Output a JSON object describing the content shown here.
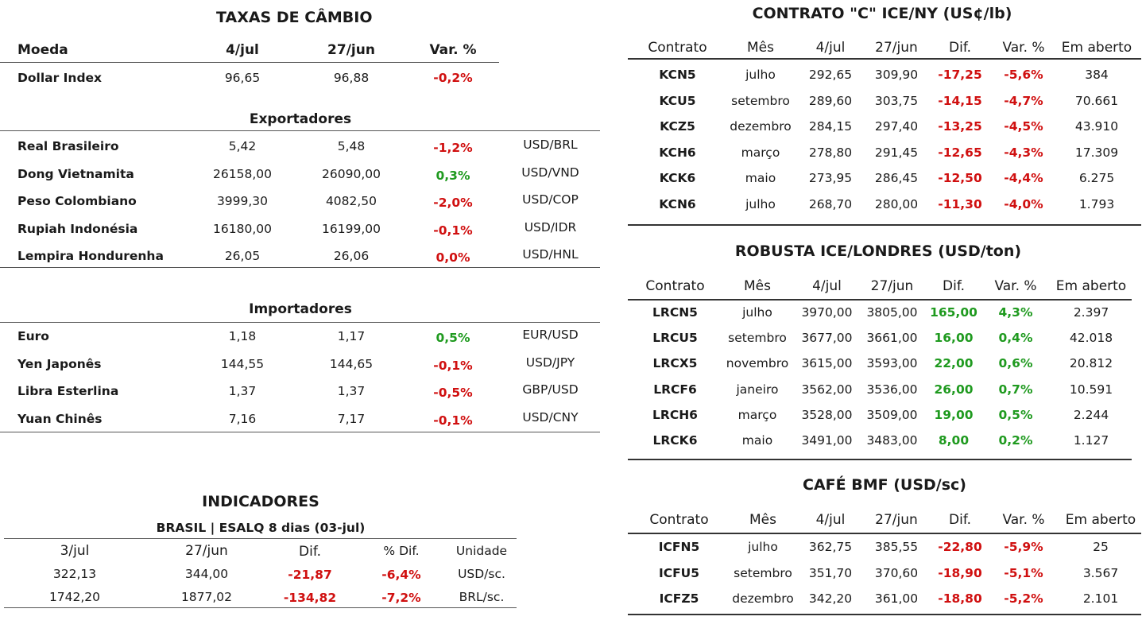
{
  "taxas": {
    "title": "TAXAS DE CÂMBIO",
    "headers": [
      "Moeda",
      "4/jul",
      "27/jun",
      "Var. %"
    ],
    "dollar_index": {
      "name": "Dollar Index",
      "v1": "96,65",
      "v2": "96,88",
      "var": "-0,2%"
    },
    "exportadores_title": "Exportadores",
    "exportadores": [
      {
        "name": "Real Brasileiro",
        "v1": "5,42",
        "v2": "5,48",
        "var": "-1,2%",
        "pair": "USD/BRL",
        "color": "red"
      },
      {
        "name": "Dong Vietnamita",
        "v1": "26158,00",
        "v2": "26090,00",
        "var": "0,3%",
        "pair": "USD/VND",
        "color": "green"
      },
      {
        "name": "Peso Colombiano",
        "v1": "3999,30",
        "v2": "4082,50",
        "var": "-2,0%",
        "pair": "USD/COP",
        "color": "red"
      },
      {
        "name": "Rupiah Indonésia",
        "v1": "16180,00",
        "v2": "16199,00",
        "var": "-0,1%",
        "pair": "USD/IDR",
        "color": "red"
      },
      {
        "name": "Lempira Hondurenha",
        "v1": "26,05",
        "v2": "26,06",
        "var": "0,0%",
        "pair": "USD/HNL",
        "color": "red"
      }
    ],
    "importadores_title": "Importadores",
    "importadores": [
      {
        "name": "Euro",
        "v1": "1,18",
        "v2": "1,17",
        "var": "0,5%",
        "pair": "EUR/USD",
        "color": "green"
      },
      {
        "name": "Yen Japonês",
        "v1": "144,55",
        "v2": "144,65",
        "var": "-0,1%",
        "pair": "USD/JPY",
        "color": "red"
      },
      {
        "name": "Libra Esterlina",
        "v1": "1,37",
        "v2": "1,37",
        "var": "-0,5%",
        "pair": "GBP/USD",
        "color": "red"
      },
      {
        "name": "Yuan Chinês",
        "v1": "7,16",
        "v2": "7,17",
        "var": "-0,1%",
        "pair": "USD/CNY",
        "color": "red"
      }
    ]
  },
  "indicadores": {
    "title": "INDICADORES",
    "subtitle": "BRASIL | ESALQ 8 dias (03-jul)",
    "headers": [
      "3/jul",
      "27/jun",
      "Dif.",
      "% Dif.",
      "Unidade"
    ],
    "rows": [
      {
        "v1": "322,13",
        "v2": "344,00",
        "dif": "-21,87",
        "pct": "-6,4%",
        "unit": "USD/sc."
      },
      {
        "v1": "1742,20",
        "v2": "1877,02",
        "dif": "-134,82",
        "pct": "-7,2%",
        "unit": "BRL/sc."
      }
    ]
  },
  "contrato_c": {
    "title": "CONTRATO \"C\" ICE/NY (US¢/lb)",
    "headers": [
      "Contrato",
      "Mês",
      "4/jul",
      "27/jun",
      "Dif.",
      "Var. %",
      "Em aberto"
    ],
    "rows": [
      {
        "code": "KCN5",
        "month": "julho",
        "v1": "292,65",
        "v2": "309,90",
        "dif": "-17,25",
        "var": "-5,6%",
        "open": "384"
      },
      {
        "code": "KCU5",
        "month": "setembro",
        "v1": "289,60",
        "v2": "303,75",
        "dif": "-14,15",
        "var": "-4,7%",
        "open": "70.661"
      },
      {
        "code": "KCZ5",
        "month": "dezembro",
        "v1": "284,15",
        "v2": "297,40",
        "dif": "-13,25",
        "var": "-4,5%",
        "open": "43.910"
      },
      {
        "code": "KCH6",
        "month": "março",
        "v1": "278,80",
        "v2": "291,45",
        "dif": "-12,65",
        "var": "-4,3%",
        "open": "17.309"
      },
      {
        "code": "KCK6",
        "month": "maio",
        "v1": "273,95",
        "v2": "286,45",
        "dif": "-12,50",
        "var": "-4,4%",
        "open": "6.275"
      },
      {
        "code": "KCN6",
        "month": "julho",
        "v1": "268,70",
        "v2": "280,00",
        "dif": "-11,30",
        "var": "-4,0%",
        "open": "1.793"
      }
    ]
  },
  "robusta": {
    "title": "ROBUSTA ICE/LONDRES (USD/ton)",
    "headers": [
      "Contrato",
      "Mês",
      "4/jul",
      "27/jun",
      "Dif.",
      "Var. %",
      "Em aberto"
    ],
    "rows": [
      {
        "code": "LRCN5",
        "month": "julho",
        "v1": "3970,00",
        "v2": "3805,00",
        "dif": "165,00",
        "var": "4,3%",
        "open": "2.397"
      },
      {
        "code": "LRCU5",
        "month": "setembro",
        "v1": "3677,00",
        "v2": "3661,00",
        "dif": "16,00",
        "var": "0,4%",
        "open": "42.018"
      },
      {
        "code": "LRCX5",
        "month": "novembro",
        "v1": "3615,00",
        "v2": "3593,00",
        "dif": "22,00",
        "var": "0,6%",
        "open": "20.812"
      },
      {
        "code": "LRCF6",
        "month": "janeiro",
        "v1": "3562,00",
        "v2": "3536,00",
        "dif": "26,00",
        "var": "0,7%",
        "open": "10.591"
      },
      {
        "code": "LRCH6",
        "month": "março",
        "v1": "3528,00",
        "v2": "3509,00",
        "dif": "19,00",
        "var": "0,5%",
        "open": "2.244"
      },
      {
        "code": "LRCK6",
        "month": "maio",
        "v1": "3491,00",
        "v2": "3483,00",
        "dif": "8,00",
        "var": "0,2%",
        "open": "1.127"
      }
    ]
  },
  "cafe_bmf": {
    "title": "CAFÉ BMF (USD/sc)",
    "headers": [
      "Contrato",
      "Mês",
      "4/jul",
      "27/jun",
      "Dif.",
      "Var. %",
      "Em aberto"
    ],
    "rows": [
      {
        "code": "ICFN5",
        "month": "julho",
        "v1": "362,75",
        "v2": "385,55",
        "dif": "-22,80",
        "var": "-5,9%",
        "open": "25"
      },
      {
        "code": "ICFU5",
        "month": "setembro",
        "v1": "351,70",
        "v2": "370,60",
        "dif": "-18,90",
        "var": "-5,1%",
        "open": "3.567"
      },
      {
        "code": "ICFZ5",
        "month": "dezembro",
        "v1": "342,20",
        "v2": "361,00",
        "dif": "-18,80",
        "var": "-5,2%",
        "open": "2.101"
      }
    ]
  },
  "colors": {
    "red": "#d01010",
    "green": "#1f9a1f"
  }
}
